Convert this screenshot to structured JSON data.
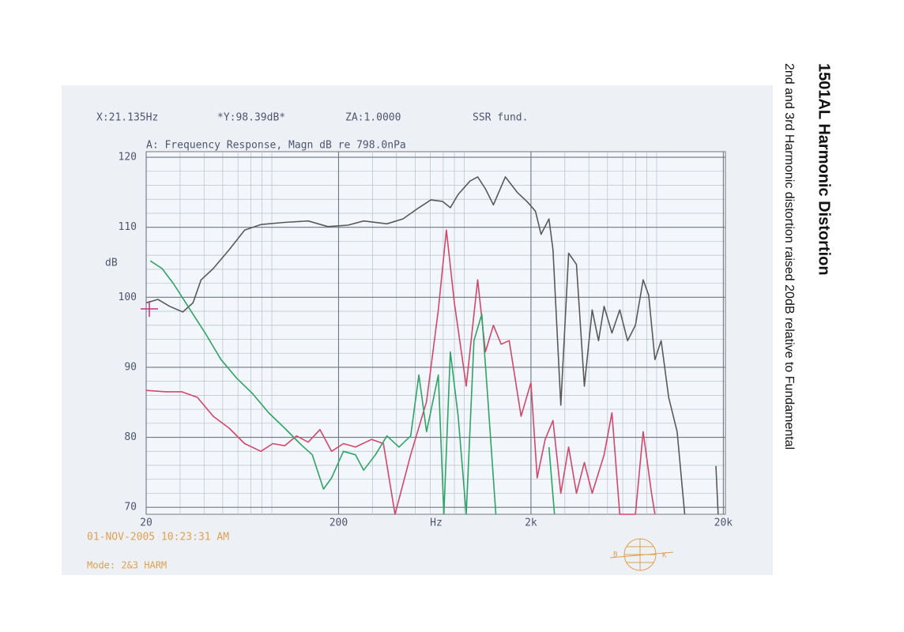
{
  "chart_data": {
    "type": "line",
    "title": "1501AL Harmonic Distortion",
    "subtitle": "2nd and 3rd Harmonic distortion raised 20dB relative to Fundamental",
    "readout": [
      "X:21.135Hz",
      "*Y:98.39dB*",
      "ZA:1.0000",
      "SSR fund."
    ],
    "plot_title": "A: Frequency Response, Magn dB re 798.0nPa",
    "date": "01-NOV-2005 10:23:31 AM",
    "mode": "Mode: 2&3 HARM",
    "logo": [
      "B",
      "K"
    ],
    "x_label": "Hz",
    "y_label": "dB",
    "log_x": true,
    "grid": true,
    "xlim": [
      20,
      20500
    ],
    "ylim": [
      69,
      120.8
    ],
    "xticks": [
      20,
      200,
      {
        "value": 2000,
        "label": "2k"
      },
      {
        "value": 20000,
        "label": "20k"
      }
    ],
    "xminorticks": [
      30,
      40,
      50,
      60,
      70,
      80,
      90,
      300,
      400,
      500,
      600,
      700,
      800,
      900,
      3000,
      4000,
      5000,
      6000,
      7000,
      8000,
      9000
    ],
    "yticks": [
      70,
      80,
      90,
      100,
      110,
      120
    ],
    "yminorticks": [
      72,
      74,
      76,
      78,
      82,
      84,
      86,
      88,
      92,
      94,
      96,
      98,
      102,
      104,
      106,
      108,
      112,
      114,
      116,
      118
    ],
    "series": [
      {
        "color": "#5a5a5a",
        "x": [
          20,
          23,
          26.5,
          31,
          35,
          38.6,
          44.6,
          54,
          65,
          79,
          105,
          139,
          176,
          224,
          270,
          357,
          432,
          523,
          603,
          694,
          762,
          837,
          964,
          1057,
          1160,
          1276,
          1472,
          1696,
          1920,
          2110,
          2256,
          2481,
          2603,
          2860,
          3138,
          3448,
          3790,
          4160,
          4490,
          4800,
          5270,
          5790,
          6360,
          6980,
          7660,
          8180,
          8820,
          9500,
          10400,
          11500,
          12600,
          17800,
          18300,
          18800
        ],
        "values": [
          99.2,
          99.7,
          98.7,
          97.9,
          99.2,
          102.5,
          104.1,
          106.8,
          109.6,
          110.4,
          110.7,
          110.9,
          110.1,
          110.3,
          110.9,
          110.5,
          111.2,
          112.8,
          113.9,
          113.7,
          112.8,
          114.7,
          116.6,
          117.2,
          115.5,
          113.2,
          117.2,
          115.0,
          113.6,
          112.3,
          109.0,
          111.2,
          106.8,
          84.6,
          106.3,
          104.7,
          87.3,
          98.2,
          93.8,
          98.7,
          94.9,
          98.2,
          93.8,
          96.0,
          102.5,
          100.3,
          91.1,
          93.8,
          85.7,
          80.8,
          69,
          null,
          75.9,
          69
        ]
      },
      {
        "color": "#d2486a",
        "x": [
          20,
          25.3,
          30.6,
          36.9,
          44.6,
          54,
          65,
          79,
          91,
          105,
          121,
          139,
          160,
          184,
          212,
          245,
          297,
          342,
          393,
          474,
          573,
          660,
          727,
          800,
          922,
          1057,
          1160,
          1276,
          1400,
          1542,
          1777,
          2000,
          2155,
          2370,
          2603,
          2860,
          3138,
          3448,
          3790,
          4160,
          4800,
          5270,
          5790,
          6980,
          7660,
          8470,
          8820
        ],
        "values": [
          86.7,
          86.5,
          86.5,
          85.7,
          83.0,
          81.3,
          79.1,
          78.0,
          79.1,
          78.8,
          80.2,
          79.3,
          81.1,
          78.0,
          79.1,
          78.6,
          79.7,
          79.1,
          69,
          77.5,
          85.1,
          98.2,
          109.6,
          99.2,
          87.3,
          102.5,
          92.2,
          96.0,
          93.3,
          93.8,
          83.0,
          87.8,
          74.2,
          79.7,
          82.4,
          72.0,
          78.6,
          72.0,
          76.4,
          72.0,
          77.5,
          83.5,
          69,
          69,
          80.8,
          72.0,
          69
        ]
      },
      {
        "color": "#2ea466",
        "x": [
          21,
          24.2,
          27.8,
          33.9,
          40.5,
          49,
          59.3,
          71.6,
          86.6,
          105,
          126,
          146,
          167,
          184,
          212,
          245,
          270,
          311,
          357,
          412,
          474,
          523,
          573,
          660,
          705,
          762,
          837,
          922,
          1011,
          1110,
          1196,
          1314,
          2370,
          2481,
          2650
        ],
        "values": [
          105.2,
          104.1,
          101.9,
          98.2,
          94.9,
          91.1,
          88.4,
          86.2,
          83.5,
          81.3,
          79.1,
          77.5,
          72.6,
          74.2,
          78.0,
          77.5,
          75.3,
          77.5,
          80.2,
          78.6,
          80.2,
          88.9,
          80.8,
          88.9,
          69,
          92.2,
          83.0,
          69,
          93.8,
          97.6,
          85.1,
          69,
          null,
          78.6,
          69
        ]
      }
    ]
  }
}
